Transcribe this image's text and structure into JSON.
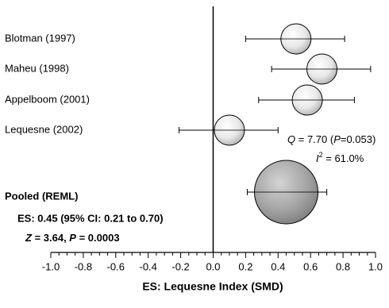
{
  "chart_data": {
    "type": "forest",
    "xlabel": "ES: Lequesne Index (SMD)",
    "xlim": [
      -1.0,
      1.0
    ],
    "xticks": [
      {
        "value": -1.0,
        "label": "-1.0"
      },
      -0.8,
      -0.6,
      -0.4,
      -0.2,
      {
        "value": 0,
        "label": "0.0"
      },
      0.2,
      0.4,
      0.6,
      0.8,
      {
        "value": 1.0,
        "label": "1.0"
      }
    ],
    "categories": [
      "Blotman (1997)",
      "Maheu (1998)",
      "Appelboom (2001)",
      "Lequesne (2002)"
    ],
    "values": [
      0.51,
      0.67,
      0.58,
      0.1
    ],
    "ci_lower": [
      0.2,
      0.36,
      0.28,
      -0.21
    ],
    "ci_upper": [
      0.81,
      0.97,
      0.87,
      0.4
    ],
    "heterogeneity": [
      [
        {
          "text": "Q",
          "style": "italic"
        },
        {
          "text": " = 7.70 (",
          "style": "normal"
        },
        {
          "text": "P",
          "style": "italic"
        },
        {
          "text": "=0.053)",
          "style": "normal"
        }
      ],
      [
        {
          "text": "I",
          "style": "italic"
        },
        {
          "text": "2",
          "style": "sup"
        },
        {
          "text": " = 61.0%",
          "style": "normal"
        }
      ]
    ],
    "pooled": {
      "label": "Pooled (REML)",
      "value": 0.45,
      "ci_lower": 0.21,
      "ci_upper": 0.7,
      "summary": "ES: 0.45 (95% CI: 0.21 to 0.70)",
      "test": [
        {
          "text": "Z",
          "style": "italic"
        },
        {
          "text": " = 3.64, ",
          "style": "normal"
        },
        {
          "text": "P",
          "style": "italic"
        },
        {
          "text": " = 0.0003",
          "style": "normal"
        }
      ]
    }
  }
}
